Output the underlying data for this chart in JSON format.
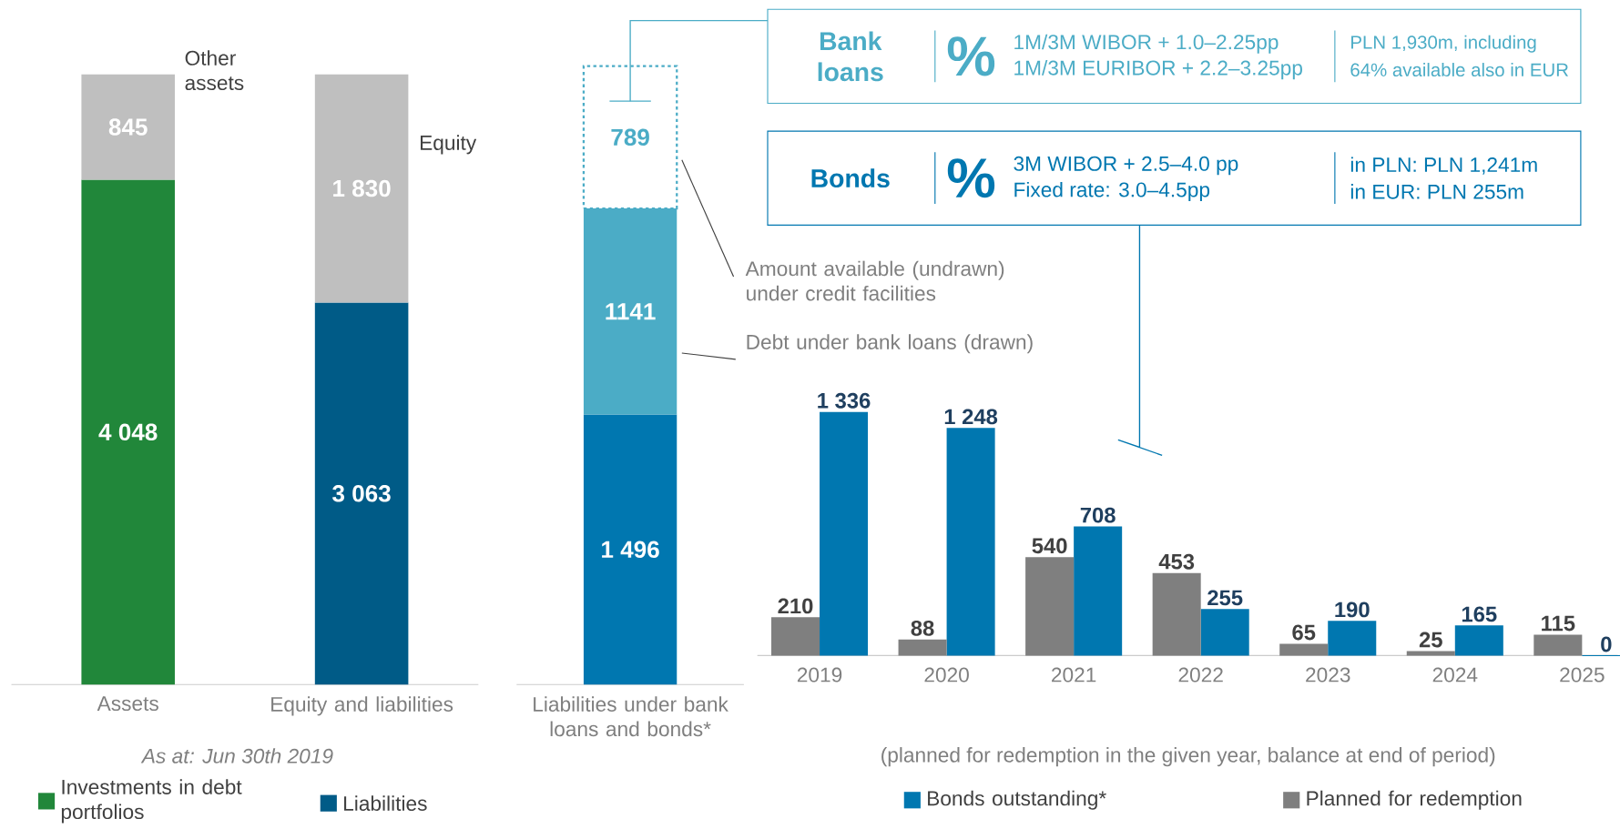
{
  "chart_data": [
    {
      "type": "bar",
      "stacked": true,
      "categories": [
        "Assets",
        "Equity and liabilities"
      ],
      "legend": "bottom",
      "annotations": [
        "As at: Jun 30th 2019"
      ],
      "series": [
        {
          "name": "Investments in debt portfolios",
          "color": "#21873a",
          "values": [
            4048,
            null
          ],
          "value_labels": [
            "4 048",
            null
          ]
        },
        {
          "name": "Liabilities",
          "color": "#005b87",
          "values": [
            null,
            3063
          ],
          "value_labels": [
            null,
            "3 063"
          ]
        },
        {
          "name": "Other assets",
          "color": "#bfbfbf",
          "values": [
            845,
            null
          ],
          "value_labels": [
            "845",
            null
          ]
        },
        {
          "name": "Equity",
          "color": "#bfbfbf",
          "values": [
            null,
            1830
          ],
          "value_labels": [
            null,
            "1 830"
          ]
        }
      ]
    },
    {
      "type": "bar",
      "stacked": true,
      "categories": [
        "Liabilities under bank loans and bonds*"
      ],
      "series": [
        {
          "color": "#0077b0",
          "values": [
            1496
          ],
          "value_labels": [
            "1 496"
          ]
        },
        {
          "name": "Debt under bank loans (drawn)",
          "color": "#4bacc6",
          "values": [
            1141
          ],
          "value_labels": [
            "1141"
          ]
        },
        {
          "name": "Amount available (undrawn) under credit facilities",
          "color": "#4bacc6",
          "values": [
            789
          ],
          "value_labels": [
            "789"
          ],
          "line_style": "dashed"
        }
      ]
    },
    {
      "type": "other",
      "title": "Bank loans",
      "color": "#4bacc6",
      "annotations": [
        "%",
        "1M/3M WIBOR + 1.0–2.25pp",
        "1M/3M EURIBOR + 2.2–3.25pp",
        "PLN 1,930m, including",
        "64% available also in EUR"
      ]
    },
    {
      "type": "other",
      "title": "Bonds",
      "color": "#0077b0",
      "annotations": [
        "%",
        "3M WIBOR + 2.5–4.0 pp",
        "Fixed rate: 3.0–4.5pp",
        "in PLN: PLN 1,241m",
        "in EUR:    PLN 255m"
      ]
    },
    {
      "type": "bar",
      "categories": [
        "2019",
        "2020",
        "2021",
        "2022",
        "2023",
        "2024",
        "2025"
      ],
      "legend": "bottom",
      "annotations": [
        "(planned for redemption in the given year, balance at end of period)"
      ],
      "series": [
        {
          "name": "Bonds outstanding*",
          "color": "#0077b0",
          "values": [
            1336,
            1248,
            708,
            255,
            190,
            165,
            0
          ],
          "value_labels": [
            "1 336",
            "1 248",
            "708",
            "255",
            "190",
            "165",
            "0"
          ]
        },
        {
          "name": "Planned for redemption",
          "color": "#7f7f7f",
          "values": [
            210,
            88,
            540,
            453,
            65,
            25,
            115
          ],
          "value_labels": [
            "210",
            "88",
            "540",
            "453",
            "65",
            "25",
            "115"
          ]
        }
      ]
    }
  ]
}
